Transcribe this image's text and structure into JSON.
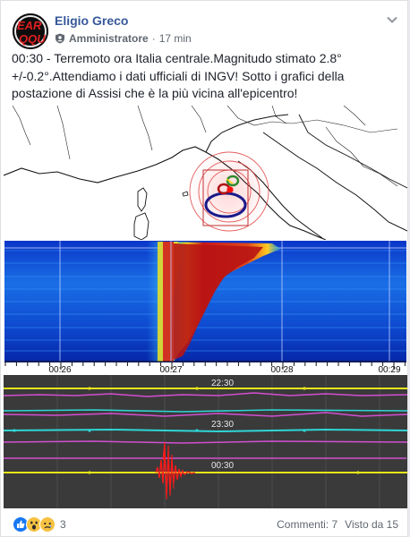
{
  "post": {
    "author": "Eligio Greco",
    "role": "Amministratore",
    "separator": "·",
    "time": "17 min",
    "body": "00:30 - Terremoto ora Italia centrale.Magnitudo stimato 2.8° +/-0.2°.Attendiamo i dati ufficiali di INGV! Sotto i grafici della postazione di Assisi che è la più vicina all'epicentro!"
  },
  "avatar": {
    "logo_text": "EAR QQU"
  },
  "spectrogram": {
    "time_ticks": [
      "00:26",
      "00:27",
      "00:28",
      "00:29"
    ]
  },
  "seismogram": {
    "trace_labels": [
      "22:30",
      "23:30",
      "00:30"
    ]
  },
  "footer": {
    "reaction_count": "3",
    "comments": "Commenti: 7",
    "seen": "Visto da 15"
  },
  "colors": {
    "link": "#365899",
    "text": "#1d2129",
    "meta": "#606770",
    "trace_yellow": "#e6e61a",
    "trace_magenta": "#d24fd2",
    "trace_cyan": "#2fd6d6",
    "quake_red": "#ff1a1a"
  }
}
